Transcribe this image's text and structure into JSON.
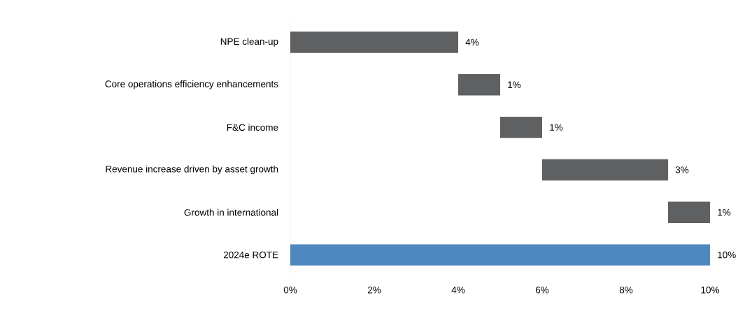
{
  "chart_data": {
    "type": "bar",
    "orientation": "horizontal",
    "categories": [
      "NPE clean-up",
      "Core operations efficiency enhancements",
      "F&C income",
      "Revenue increase driven by asset growth",
      "Growth in international",
      "2024e ROTE"
    ],
    "values": [
      4,
      1,
      1,
      3,
      1,
      10
    ],
    "base": [
      0,
      4,
      5,
      6,
      9,
      0
    ],
    "colors": [
      "#5f6062",
      "#5f6062",
      "#5f6062",
      "#5f6062",
      "#5f6062",
      "#4f88bf"
    ],
    "value_labels": [
      "4%",
      "1%",
      "1%",
      "3%",
      "1%",
      "10%"
    ],
    "xlim": [
      0,
      10
    ],
    "xticks": [
      {
        "value": 0,
        "label": "0%"
      },
      {
        "value": 2,
        "label": "2%"
      },
      {
        "value": 4,
        "label": "4%"
      },
      {
        "value": 6,
        "label": "6%"
      },
      {
        "value": 8,
        "label": "8%"
      },
      {
        "value": 10,
        "label": "10%"
      }
    ],
    "grid": false
  }
}
